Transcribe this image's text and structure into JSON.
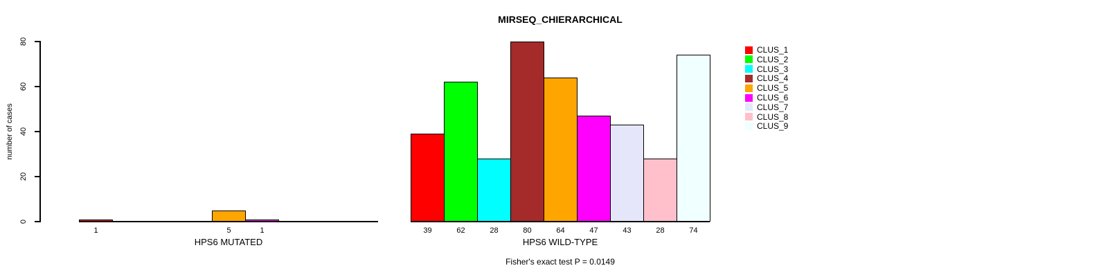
{
  "background_color": "#FFFFFF",
  "text_color": "#000000",
  "chart_data": {
    "type": "bar",
    "title": "MIRSEQ_CHIERARCHICAL",
    "ylabel": "number of cases",
    "xlabel": "",
    "ylim": [
      0,
      80
    ],
    "yticks": [
      0,
      20,
      40,
      60,
      80
    ],
    "grid": false,
    "legend_position": "right",
    "bar_border_color": "#000000",
    "categories": [
      "CLUS_1",
      "CLUS_2",
      "CLUS_3",
      "CLUS_4",
      "CLUS_5",
      "CLUS_6",
      "CLUS_7",
      "CLUS_8",
      "CLUS_9"
    ],
    "legend": [
      {
        "label": "CLUS_1",
        "color": "#FF0000"
      },
      {
        "label": "CLUS_2",
        "color": "#00FF00"
      },
      {
        "label": "CLUS_3",
        "color": "#00FFFF"
      },
      {
        "label": "CLUS_4",
        "color": "#A52A2A"
      },
      {
        "label": "CLUS_5",
        "color": "#FFA500"
      },
      {
        "label": "CLUS_6",
        "color": "#FF00FF"
      },
      {
        "label": "CLUS_7",
        "color": "#E6E6FA"
      },
      {
        "label": "CLUS_8",
        "color": "#FFC0CB"
      },
      {
        "label": "CLUS_9",
        "color": "#F0FFFF"
      }
    ],
    "groups": [
      {
        "label": "HPS6 MUTATED",
        "values": [
          1,
          0,
          0,
          0,
          5,
          1,
          0,
          0,
          0
        ],
        "bar_value_labels": [
          "1",
          "",
          "",
          "",
          "5",
          "1",
          "",
          "",
          ""
        ]
      },
      {
        "label": "HPS6 WILD-TYPE",
        "values": [
          39,
          62,
          28,
          80,
          64,
          47,
          43,
          28,
          74
        ],
        "bar_value_labels": [
          "39",
          "62",
          "28",
          "80",
          "64",
          "47",
          "43",
          "28",
          "74"
        ]
      }
    ],
    "annotation": "Fisher's exact test P = 0.0149"
  }
}
